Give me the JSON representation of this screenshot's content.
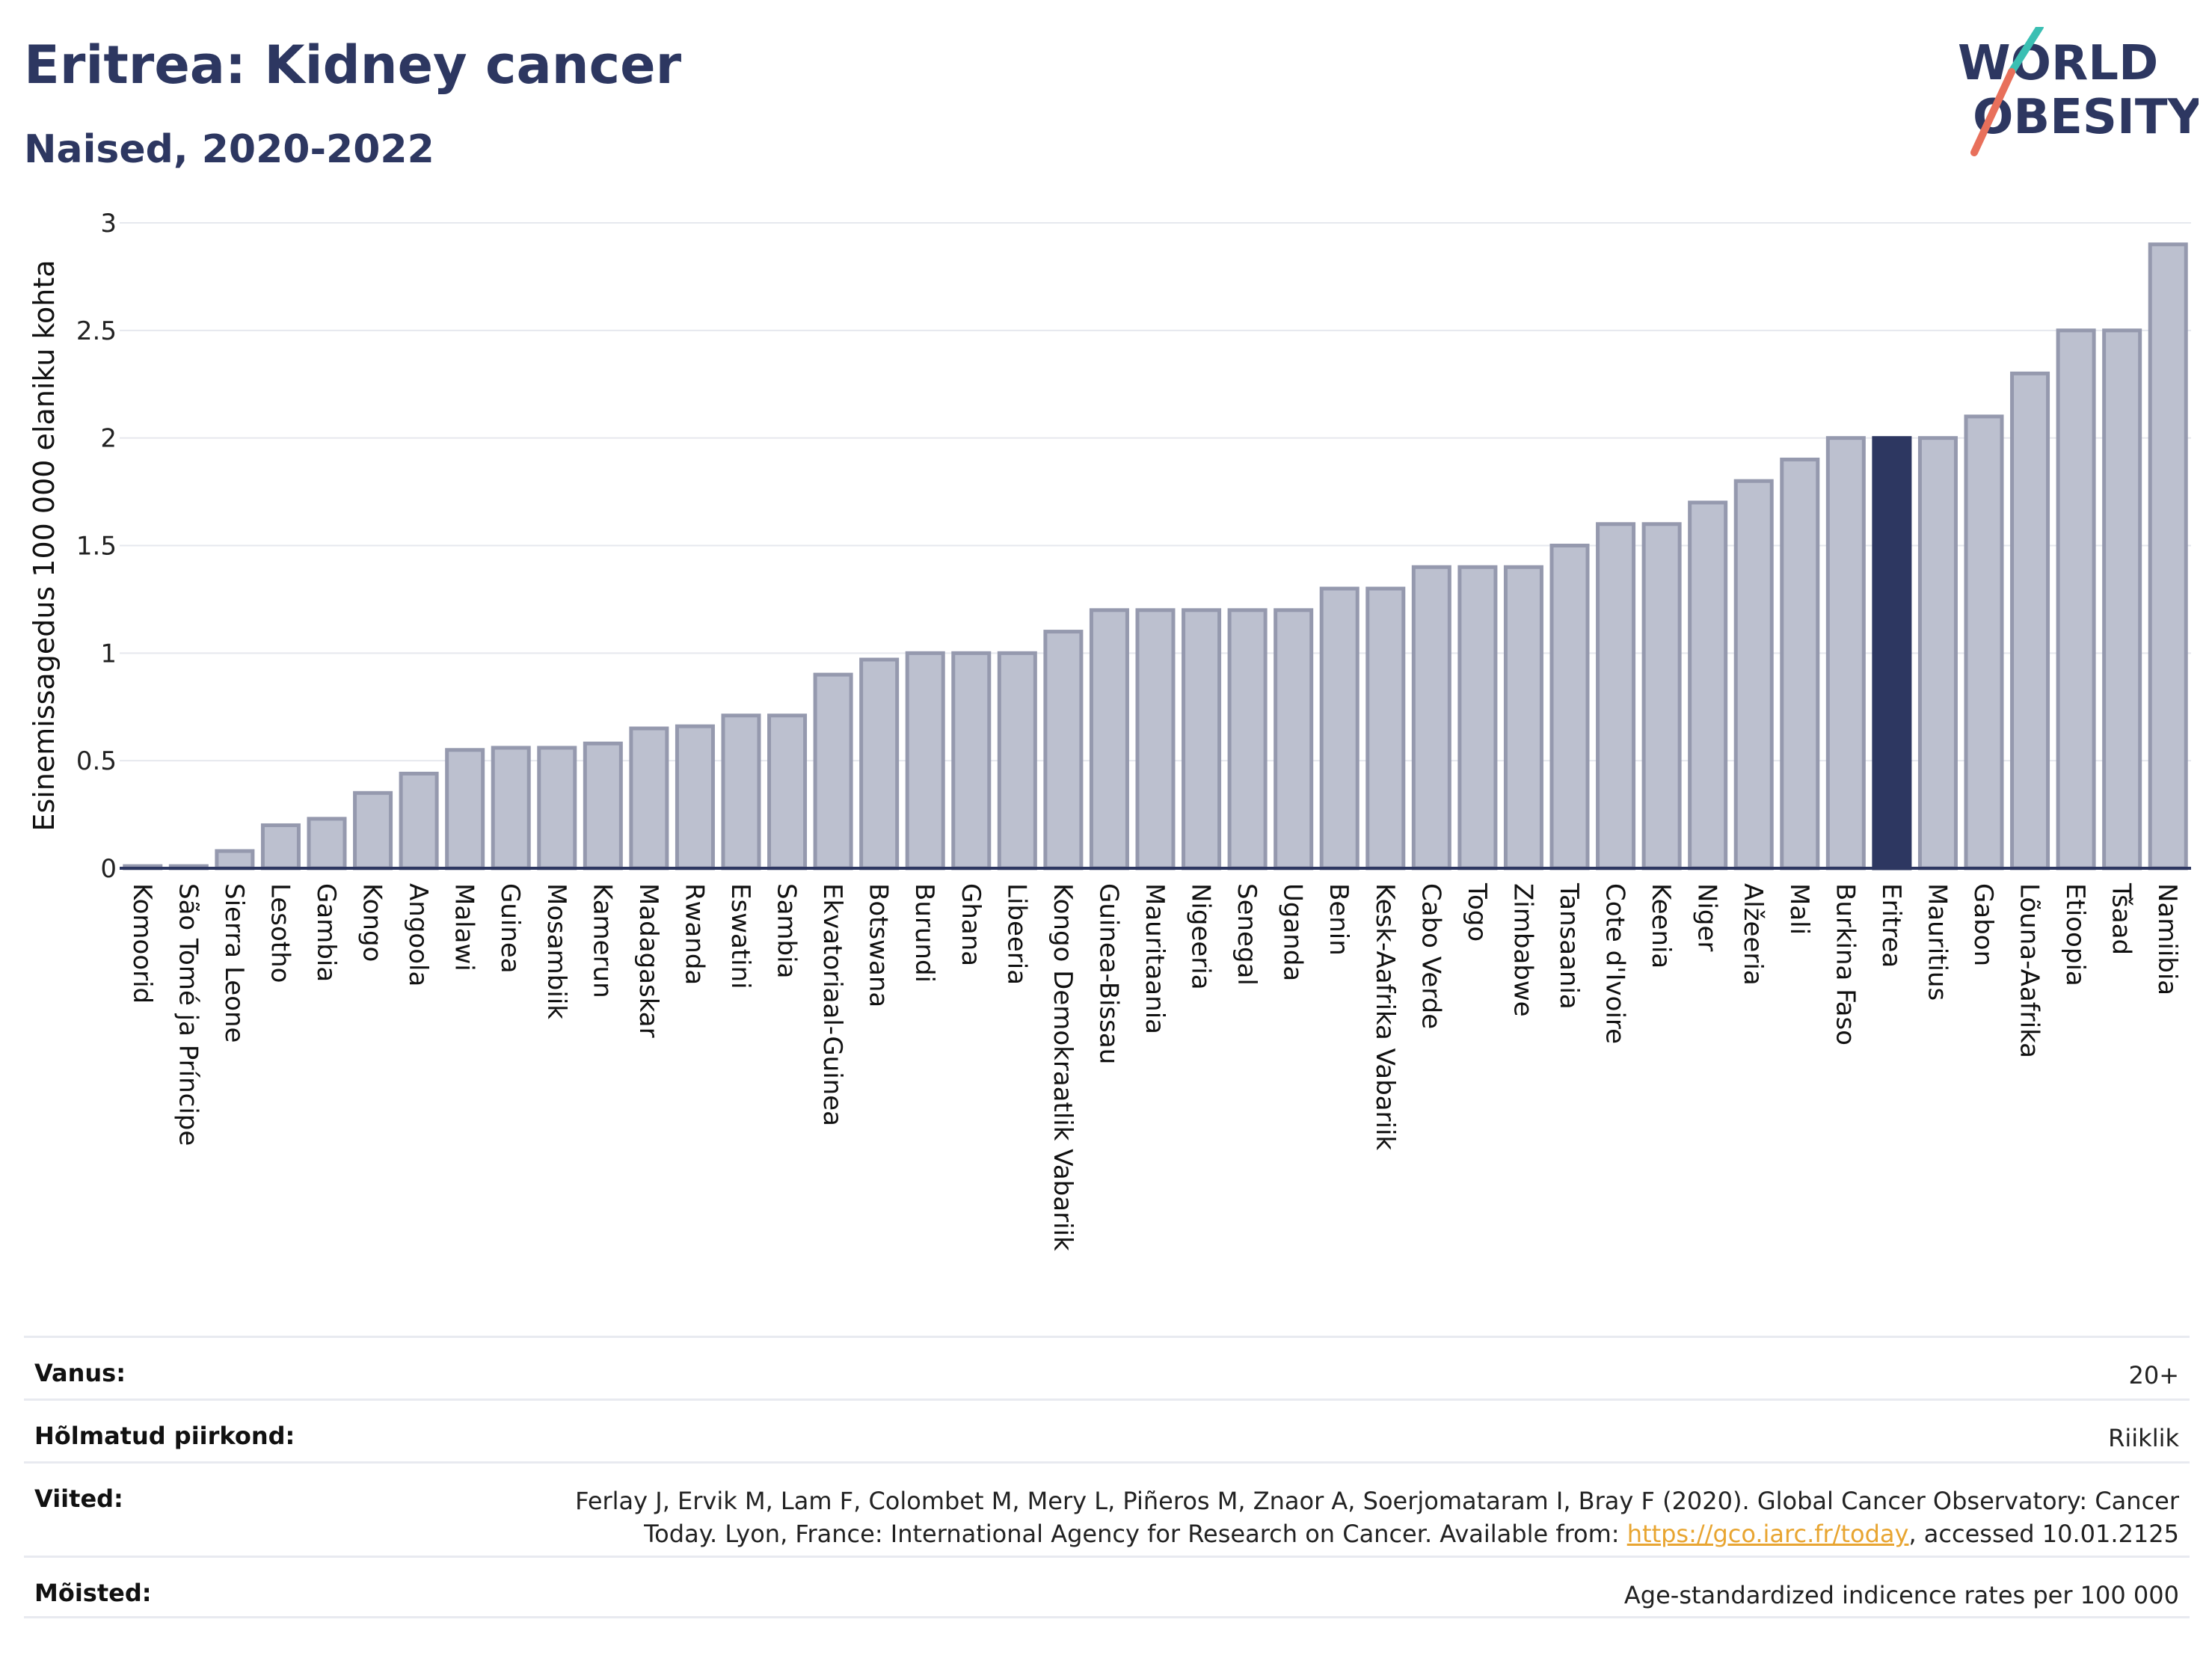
{
  "header": {
    "title": "Eritrea: Kidney cancer",
    "subtitle": "Naised, 2020-2022"
  },
  "logo": {
    "line1": "WORLD",
    "line2": "OBESITY",
    "accent_teal": "#3bbfb3",
    "accent_coral": "#e8705b"
  },
  "colors": {
    "bar": "#bcc0cf",
    "bar_stroke": "#9599ae",
    "highlight": "#2d3761",
    "grid": "#e6e8ee",
    "axis": "#2d3761"
  },
  "chart_data": {
    "type": "bar",
    "title": "Eritrea: Kidney cancer",
    "subtitle": "Naised, 2020-2022",
    "ylabel": "Esinemissagedus 100 000 elaniku kohta",
    "xlabel": "",
    "ylim": [
      0,
      3
    ],
    "yticks": [
      0,
      0.5,
      1,
      1.5,
      2,
      2.5,
      3
    ],
    "ytick_labels": [
      "0",
      "0.5",
      "1",
      "1.5",
      "2",
      "2.5",
      "3"
    ],
    "grid": true,
    "highlight": "Eritrea",
    "categories": [
      "Komoorid",
      "São Tomé ja Príncipe",
      "Sierra Leone",
      "Lesotho",
      "Gambia",
      "Kongo",
      "Angoola",
      "Malawi",
      "Guinea",
      "Mosambiik",
      "Kamerun",
      "Madagaskar",
      "Rwanda",
      "Eswatini",
      "Sambia",
      "Ekvatoriaal-Guinea",
      "Botswana",
      "Burundi",
      "Ghana",
      "Libeeria",
      "Kongo Demokraatlik Vabariik",
      "Guinea-Bissau",
      "Mauritaania",
      "Nigeeria",
      "Senegal",
      "Uganda",
      "Benin",
      "Kesk-Aafrika Vabariik",
      "Cabo Verde",
      "Togo",
      "Zimbabwe",
      "Tansaania",
      "Cote d'Ivoire",
      "Keenia",
      "Niger",
      "Alžeeria",
      "Mali",
      "Burkina Faso",
      "Eritrea",
      "Mauritius",
      "Gabon",
      "Lõuna-Aafrika",
      "Etioopia",
      "Tšaad",
      "Namiibia"
    ],
    "values": [
      0.01,
      0.01,
      0.08,
      0.2,
      0.23,
      0.35,
      0.44,
      0.55,
      0.56,
      0.56,
      0.58,
      0.65,
      0.66,
      0.71,
      0.71,
      0.9,
      0.97,
      1.0,
      1.0,
      1.0,
      1.1,
      1.2,
      1.2,
      1.2,
      1.2,
      1.2,
      1.3,
      1.3,
      1.4,
      1.4,
      1.4,
      1.5,
      1.6,
      1.6,
      1.7,
      1.8,
      1.9,
      2.0,
      2.0,
      2.0,
      2.1,
      2.3,
      2.5,
      2.5,
      2.9
    ]
  },
  "info": {
    "rows": [
      {
        "label": "Vanus:",
        "value": "20+"
      },
      {
        "label": "Hõlmatud piirkond:",
        "value": "Riiklik"
      },
      {
        "label": "Mõisted:",
        "value": "Age-standardized indicence rates per 100 000"
      }
    ],
    "references": {
      "label": "Viited:",
      "text_line1": "Ferlay J, Ervik M, Lam F, Colombet M, Mery L, Piñeros M, Znaor A, Soerjomataram I, Bray F (2020). Global Cancer Observatory: Cancer",
      "text_line2_pre": "Today. Lyon, France: International Agency for Research on Cancer. Available from: ",
      "link": "https://gco.iarc.fr/today",
      "text_line2_post": ", accessed 10.01.2125"
    }
  }
}
